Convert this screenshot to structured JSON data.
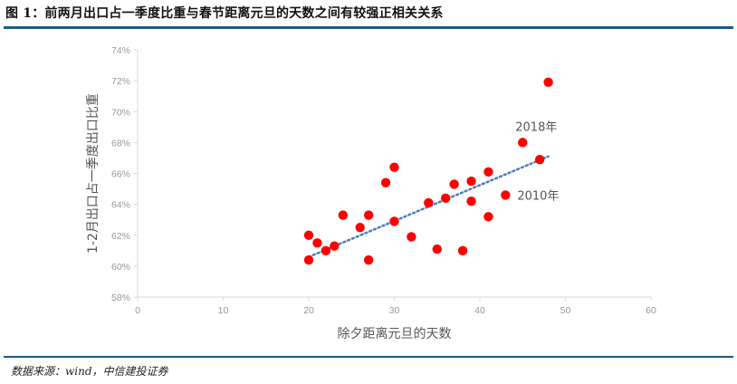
{
  "figure": {
    "title": "图 1：前两月出口占一季度比重与春节距离元旦的天数之间有较强正相关关系",
    "source": "数据来源：wind，中信建投证券"
  },
  "chart_data": {
    "type": "scatter",
    "title": "图 1：前两月出口占一季度比重与春节距离元旦的天数之间有较强正相关关系",
    "xlabel": "除夕距离元旦的天数",
    "ylabel": "1-2月出口占一季度出口比重",
    "xlim": [
      0,
      60
    ],
    "ylim": [
      0.58,
      0.74
    ],
    "x_ticks": [
      "0",
      "10",
      "20",
      "30",
      "40",
      "50",
      "60"
    ],
    "y_ticks": [
      "58%",
      "60%",
      "62%",
      "64%",
      "66%",
      "68%",
      "70%",
      "72%",
      "74%"
    ],
    "grid": false,
    "legend": null,
    "marker_color": "#ff0000",
    "trendline": {
      "type": "linear",
      "style": "dotted",
      "color": "#4a7ebb",
      "from": [
        20,
        0.606
      ],
      "to": [
        48,
        0.671
      ]
    },
    "points": [
      {
        "x": 20,
        "y": 0.62
      },
      {
        "x": 20,
        "y": 0.604
      },
      {
        "x": 21,
        "y": 0.615
      },
      {
        "x": 22,
        "y": 0.61
      },
      {
        "x": 23,
        "y": 0.613
      },
      {
        "x": 24,
        "y": 0.633
      },
      {
        "x": 26,
        "y": 0.625
      },
      {
        "x": 27,
        "y": 0.633
      },
      {
        "x": 27,
        "y": 0.604
      },
      {
        "x": 29,
        "y": 0.654
      },
      {
        "x": 30,
        "y": 0.664
      },
      {
        "x": 30,
        "y": 0.629
      },
      {
        "x": 32,
        "y": 0.619
      },
      {
        "x": 34,
        "y": 0.641
      },
      {
        "x": 35,
        "y": 0.611
      },
      {
        "x": 36,
        "y": 0.644
      },
      {
        "x": 37,
        "y": 0.653
      },
      {
        "x": 38,
        "y": 0.61
      },
      {
        "x": 39,
        "y": 0.655
      },
      {
        "x": 39,
        "y": 0.642
      },
      {
        "x": 41,
        "y": 0.661
      },
      {
        "x": 41,
        "y": 0.632
      },
      {
        "x": 43,
        "y": 0.646,
        "label": "2010年"
      },
      {
        "x": 45,
        "y": 0.68,
        "label": "2018年"
      },
      {
        "x": 47,
        "y": 0.669
      },
      {
        "x": 48,
        "y": 0.719
      }
    ],
    "annotations": [
      {
        "text": "2018年",
        "x": 45,
        "y": 0.68
      },
      {
        "text": "2010年",
        "x": 43,
        "y": 0.646
      }
    ]
  }
}
